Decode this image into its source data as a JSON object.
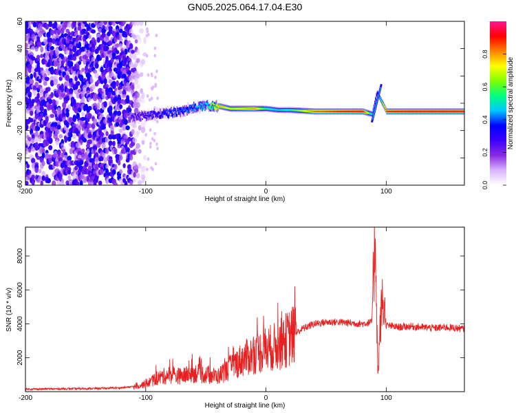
{
  "title": "GN05.2025.064.17.04.E30",
  "chart_data": [
    {
      "type": "heatmap",
      "xlabel": "Height of straight line (km)",
      "ylabel": "Frequency (Hz)",
      "xlim": [
        -200,
        165
      ],
      "ylim": [
        -60,
        60
      ],
      "x_ticks": [
        -200,
        -100,
        0,
        100
      ],
      "y_ticks": [
        -60,
        -40,
        -20,
        0,
        20,
        40,
        60
      ],
      "colorbar": {
        "label": "Normalized spectral amplitude",
        "range": [
          0,
          1
        ],
        "ticks": [
          0.0,
          0.2,
          0.4,
          0.6,
          0.8
        ],
        "colormap": [
          "#ffffff",
          "#d9b3ff",
          "#8a2be2",
          "#3b00ff",
          "#0000ff",
          "#00c8ff",
          "#00ff7f",
          "#7fff00",
          "#ffff00",
          "#ff8000",
          "#ff0000",
          "#ff1493"
        ]
      },
      "features": [
        {
          "name": "noise",
          "x_range": [
            -200,
            -100
          ],
          "frequency_range": [
            -60,
            60
          ],
          "amplitude": 0.2
        },
        {
          "name": "ridge",
          "x": [
            -115,
            -100,
            -90,
            -80,
            -70,
            -60,
            -50,
            -40,
            -30,
            -20,
            -10,
            0,
            10,
            20,
            40,
            60,
            80,
            88,
            92,
            100,
            120,
            140,
            165
          ],
          "frequency": [
            -11,
            -9,
            -8,
            -7,
            -6,
            -3,
            -2,
            -2,
            -4,
            -4,
            -4,
            -4,
            -5,
            -5,
            -6,
            -6,
            -6,
            -8,
            8,
            -6,
            -6,
            -6,
            -6
          ],
          "amplitude": [
            0.25,
            0.3,
            0.35,
            0.4,
            0.4,
            0.45,
            0.5,
            0.8,
            0.7,
            0.75,
            0.8,
            0.55,
            0.5,
            0.55,
            0.85,
            0.9,
            0.95,
            0.5,
            0.35,
            0.9,
            0.95,
            0.95,
            0.95
          ]
        }
      ]
    },
    {
      "type": "line",
      "xlabel": "Height of straight line (km)",
      "ylabel": "SNR (10 * v/v)",
      "xlim": [
        -200,
        165
      ],
      "ylim": [
        0,
        9700
      ],
      "x_ticks": [
        -200,
        -100,
        0,
        100
      ],
      "y_ticks": [
        2000,
        4000,
        6000,
        8000
      ],
      "series": [
        {
          "color": "#e82020",
          "x": [
            -200,
            -180,
            -160,
            -140,
            -120,
            -110,
            -100,
            -90,
            -80,
            -70,
            -60,
            -50,
            -40,
            -30,
            -20,
            -10,
            0,
            10,
            20,
            30,
            40,
            50,
            60,
            70,
            80,
            88,
            91,
            93,
            95,
            97,
            100,
            110,
            120,
            130,
            140,
            150,
            165
          ],
          "values": [
            150,
            160,
            170,
            190,
            230,
            300,
            450,
            800,
            1000,
            900,
            1100,
            1000,
            900,
            1400,
            1900,
            2200,
            2500,
            2700,
            3200,
            3700,
            4000,
            4100,
            4100,
            4050,
            4000,
            4100,
            9700,
            800,
            3900,
            5500,
            3900,
            3800,
            3850,
            3800,
            3750,
            3800,
            3700
          ]
        }
      ]
    }
  ]
}
